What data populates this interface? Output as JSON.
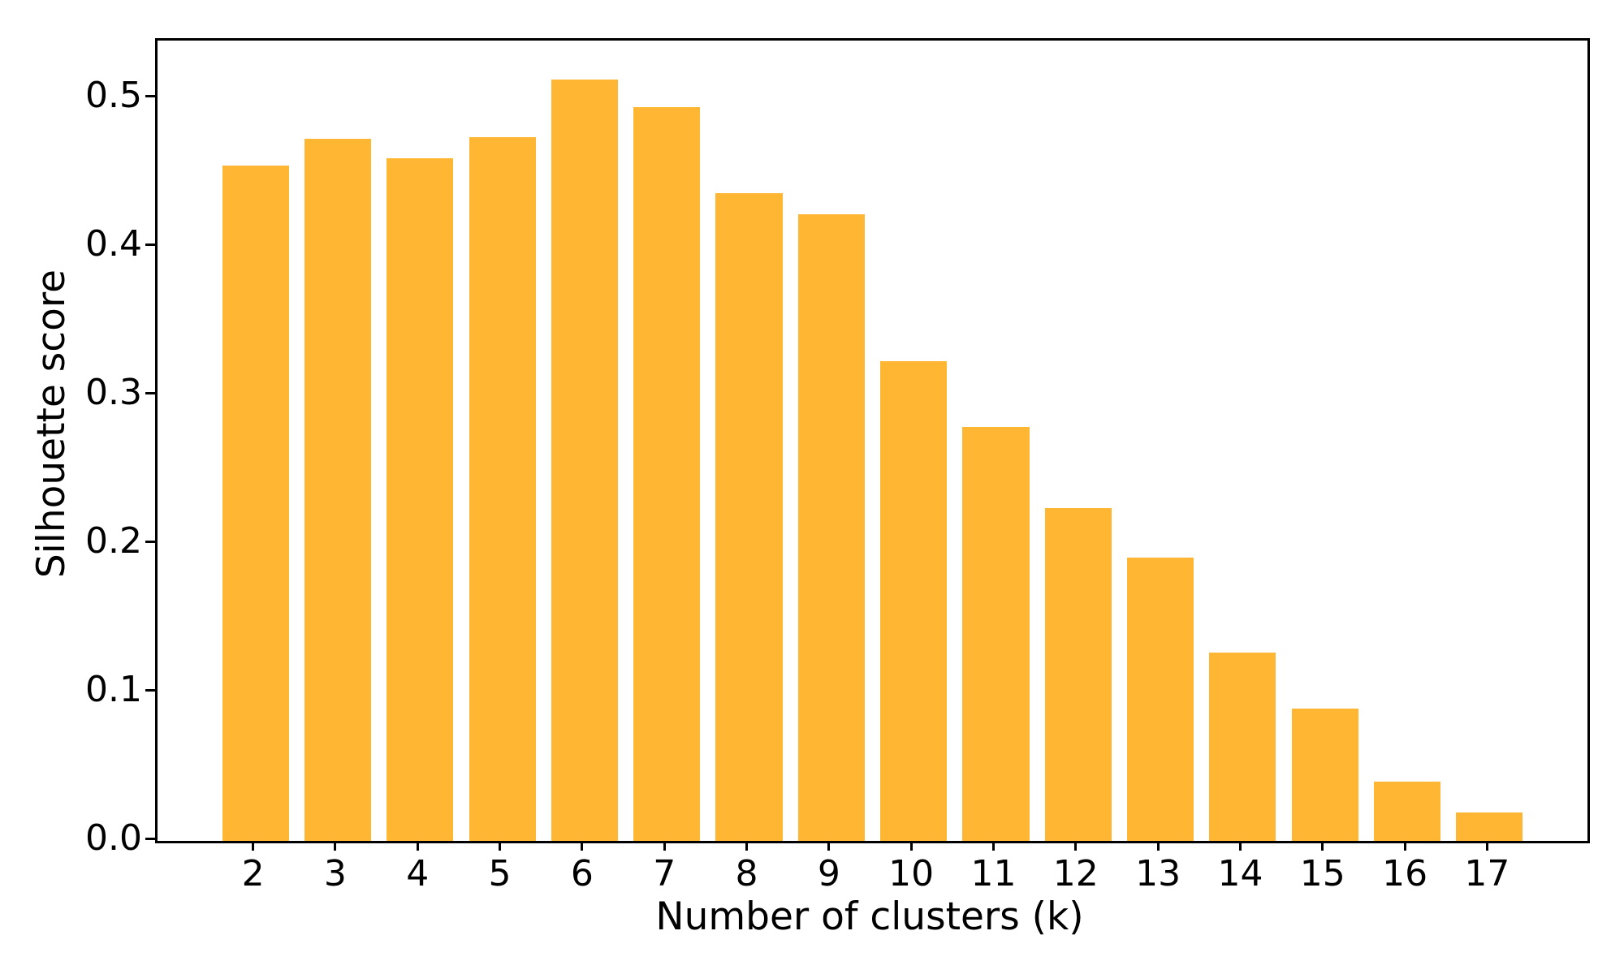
{
  "figure": {
    "background": "#ffffff"
  },
  "chart_data": {
    "type": "bar",
    "title": "",
    "xlabel": "Number of clusters (k)",
    "ylabel": "Silhouette score",
    "categories": [
      2,
      3,
      4,
      5,
      6,
      7,
      8,
      9,
      10,
      11,
      12,
      13,
      14,
      15,
      16,
      17
    ],
    "values": [
      0.455,
      0.473,
      0.46,
      0.474,
      0.513,
      0.494,
      0.436,
      0.422,
      0.323,
      0.279,
      0.224,
      0.191,
      0.127,
      0.089,
      0.04,
      0.019
    ],
    "xtick_labels": [
      "2",
      "3",
      "4",
      "5",
      "6",
      "7",
      "8",
      "9",
      "10",
      "11",
      "12",
      "13",
      "14",
      "15",
      "16",
      "17"
    ],
    "yticks": [
      0.0,
      0.1,
      0.2,
      0.3,
      0.4,
      0.5
    ],
    "ytick_labels": [
      "0.0",
      "0.1",
      "0.2",
      "0.3",
      "0.4",
      "0.5"
    ],
    "xlim": [
      0.81,
      18.19
    ],
    "ylim": [
      0.0,
      0.539
    ],
    "bar_width_data": 0.81,
    "bar_color": "#FFB733",
    "axis_color": "#000000",
    "grid": false,
    "legend": "none"
  }
}
